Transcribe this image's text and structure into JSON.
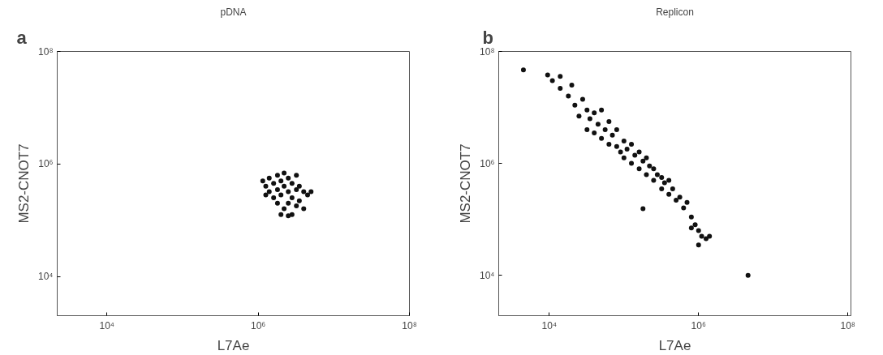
{
  "chart_data": [
    {
      "type": "scatter",
      "title": "pDNA",
      "xlabel": "L7Ae",
      "ylabel": "MS2-CNOT7",
      "annotations": [
        "a"
      ],
      "log": "xy",
      "grid": false,
      "marker": "circle",
      "xlim": [
        2200,
        100000000.0
      ],
      "ylim": [
        2000,
        100000000.0
      ],
      "xticks": [
        {
          "value": 10000.0,
          "label": "10⁴"
        },
        {
          "value": 1000000.0,
          "label": "10⁶"
        },
        {
          "value": 100000000.0,
          "label": "10⁸"
        }
      ],
      "yticks": [
        {
          "value": 10000.0,
          "label": "10⁴"
        },
        {
          "value": 1000000.0,
          "label": "10⁶"
        },
        {
          "value": 100000000.0,
          "label": "10⁸"
        }
      ],
      "series": [
        {
          "color": "#111111",
          "x": [
            1150000.0,
            1260000.0,
            1260000.0,
            1400000.0,
            1400000.0,
            1600000.0,
            1600000.0,
            1800000.0,
            1800000.0,
            1800000.0,
            2000000.0,
            2000000.0,
            2200000.0,
            2200000.0,
            2200000.0,
            2500000.0,
            2500000.0,
            2500000.0,
            2800000.0,
            2800000.0,
            2800000.0,
            3200000.0,
            3200000.0,
            3200000.0,
            3500000.0,
            3500000.0,
            4000000.0,
            4000000.0,
            4500000.0,
            5000000.0,
            2500000.0,
            2000000.0
          ],
          "values": [
            500000.0,
            400000.0,
            280000.0,
            560000.0,
            320000.0,
            450000.0,
            250000.0,
            630000.0,
            350000.0,
            200000.0,
            500000.0,
            280000.0,
            690000.0,
            400000.0,
            160000.0,
            560000.0,
            320000.0,
            200000.0,
            450000.0,
            250000.0,
            126000.0,
            630000.0,
            350000.0,
            180000.0,
            400000.0,
            220000.0,
            320000.0,
            160000.0,
            280000.0,
            320000.0,
            120000.0,
            126000.0
          ]
        }
      ]
    },
    {
      "type": "scatter",
      "title": "Replicon",
      "xlabel": "L7Ae",
      "ylabel": "MS2-CNOT7",
      "annotations": [
        "b"
      ],
      "log": "xy",
      "grid": false,
      "marker": "circle",
      "xlim": [
        2100,
        110000000.0
      ],
      "ylim": [
        1900,
        100000000.0
      ],
      "xticks": [
        {
          "value": 10000.0,
          "label": "10⁴"
        },
        {
          "value": 1000000.0,
          "label": "10⁶"
        },
        {
          "value": 100000000.0,
          "label": "10⁸"
        }
      ],
      "yticks": [
        {
          "value": 10000.0,
          "label": "10⁴"
        },
        {
          "value": 1000000.0,
          "label": "10⁶"
        },
        {
          "value": 100000000.0,
          "label": "10⁸"
        }
      ],
      "series": [
        {
          "color": "#111111",
          "x": [
            4500.0,
            9500.0,
            11000.0,
            14000.0,
            14000.0,
            18000.0,
            20000.0,
            22000.0,
            25000.0,
            28000.0,
            32000.0,
            32000.0,
            35000.0,
            40000.0,
            40000.0,
            45000.0,
            50000.0,
            50000.0,
            56000.0,
            63000.0,
            63000.0,
            70000.0,
            80000.0,
            80000.0,
            90000.0,
            100000.0,
            100000.0,
            110000.0,
            126000.0,
            126000.0,
            140000.0,
            160000.0,
            160000.0,
            180000.0,
            200000.0,
            200000.0,
            220000.0,
            250000.0,
            250000.0,
            280000.0,
            320000.0,
            320000.0,
            350000.0,
            400000.0,
            400000.0,
            450000.0,
            500000.0,
            180000.0,
            560000.0,
            630000.0,
            700000.0,
            800000.0,
            800000.0,
            900000.0,
            1000000.0,
            1000000.0,
            1100000.0,
            1260000.0,
            1400000.0,
            4600000.0
          ],
          "values": [
            47000000.0,
            38000000.0,
            30000000.0,
            36000000.0,
            22000000.0,
            16000000.0,
            25000000.0,
            11000000.0,
            7000000.0,
            14000000.0,
            9000000.0,
            4000000.0,
            6300000.0,
            8000000.0,
            3500000.0,
            5000000.0,
            9000000.0,
            2800000.0,
            4000000.0,
            2200000.0,
            5600000.0,
            3200000.0,
            2000000.0,
            4000000.0,
            1600000.0,
            2500000.0,
            1260000.0,
            1800000.0,
            1000000.0,
            2200000.0,
            1400000.0,
            800000.0,
            1600000.0,
            1100000.0,
            630000.0,
            1260000.0,
            900000.0,
            500000.0,
            800000.0,
            630000.0,
            350000.0,
            560000.0,
            450000.0,
            280000.0,
            500000.0,
            350000.0,
            220000.0,
            155000.0,
            250000.0,
            160000.0,
            200000.0,
            110000.0,
            70000.0,
            80000.0,
            63000.0,
            35000.0,
            50000.0,
            45000.0,
            50000.0,
            10000.0
          ]
        }
      ]
    }
  ]
}
